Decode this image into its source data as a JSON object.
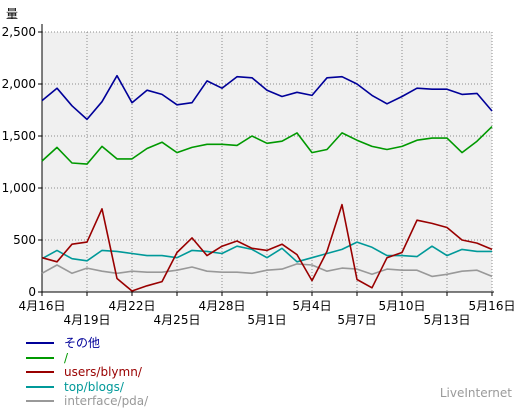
{
  "chart_data": {
    "type": "line",
    "ylabel": "量",
    "ylim": [
      0,
      2500
    ],
    "yticks": [
      0,
      500,
      1000,
      1500,
      2000,
      2500
    ],
    "ytick_labels": [
      "0",
      "500",
      "1,000",
      "1,500",
      "2,000",
      "2,500"
    ],
    "grid": true,
    "legend_position": "bottom-left",
    "categories": [
      "4月16日",
      "4月17日",
      "4月18日",
      "4月19日",
      "4月20日",
      "4月21日",
      "4月22日",
      "4月23日",
      "4月24日",
      "4月25日",
      "4月26日",
      "4月27日",
      "4月28日",
      "4月29日",
      "4月30日",
      "5月1日",
      "5月2日",
      "5月3日",
      "5月4日",
      "5月5日",
      "5月6日",
      "5月7日",
      "5月8日",
      "5月9日",
      "5月10日",
      "5月11日",
      "5月12日",
      "5月13日",
      "5月14日",
      "5月15日",
      "5月16日"
    ],
    "xtick_labels": [
      {
        "index": 0,
        "label": "4月16日",
        "row": 0
      },
      {
        "index": 3,
        "label": "4月19日",
        "row": 1
      },
      {
        "index": 6,
        "label": "4月22日",
        "row": 0
      },
      {
        "index": 9,
        "label": "4月25日",
        "row": 1
      },
      {
        "index": 12,
        "label": "4月28日",
        "row": 0
      },
      {
        "index": 15,
        "label": "5月1日",
        "row": 1
      },
      {
        "index": 18,
        "label": "5月4日",
        "row": 0
      },
      {
        "index": 21,
        "label": "5月7日",
        "row": 1
      },
      {
        "index": 24,
        "label": "5月10日",
        "row": 0
      },
      {
        "index": 27,
        "label": "5月13日",
        "row": 1
      },
      {
        "index": 30,
        "label": "5月16日",
        "row": 0
      }
    ],
    "series": [
      {
        "name": "その他",
        "color": "#000099",
        "values": [
          1840,
          1960,
          1790,
          1660,
          1830,
          2080,
          1820,
          1940,
          1900,
          1800,
          1820,
          2030,
          1960,
          2070,
          2060,
          1940,
          1880,
          1920,
          1890,
          2060,
          2070,
          2000,
          1890,
          1810,
          1880,
          1960,
          1950,
          1950,
          1900,
          1910,
          1740
        ]
      },
      {
        "name": "/",
        "color": "#009900",
        "values": [
          1260,
          1390,
          1240,
          1230,
          1400,
          1280,
          1280,
          1380,
          1440,
          1340,
          1390,
          1420,
          1420,
          1410,
          1500,
          1430,
          1450,
          1530,
          1340,
          1370,
          1530,
          1460,
          1400,
          1370,
          1400,
          1460,
          1480,
          1480,
          1340,
          1450,
          1590
        ]
      },
      {
        "name": "users/blymn/",
        "color": "#990000",
        "values": [
          330,
          290,
          460,
          480,
          800,
          130,
          10,
          60,
          100,
          380,
          520,
          350,
          440,
          490,
          420,
          400,
          460,
          360,
          110,
          390,
          840,
          120,
          40,
          330,
          380,
          690,
          660,
          620,
          500,
          470,
          410
        ]
      },
      {
        "name": "top/blogs/",
        "color": "#009999",
        "values": [
          320,
          400,
          320,
          300,
          400,
          390,
          370,
          350,
          350,
          330,
          400,
          390,
          370,
          440,
          410,
          330,
          420,
          290,
          330,
          370,
          410,
          480,
          430,
          350,
          350,
          340,
          440,
          350,
          410,
          390,
          390
        ]
      },
      {
        "name": "interface/pda/",
        "color": "#999999",
        "values": [
          180,
          260,
          180,
          230,
          200,
          180,
          200,
          190,
          190,
          210,
          240,
          200,
          190,
          190,
          180,
          210,
          220,
          270,
          260,
          200,
          230,
          220,
          170,
          220,
          210,
          210,
          150,
          170,
          200,
          210,
          150
        ]
      }
    ]
  },
  "branding": {
    "text": "LiveInternet"
  }
}
